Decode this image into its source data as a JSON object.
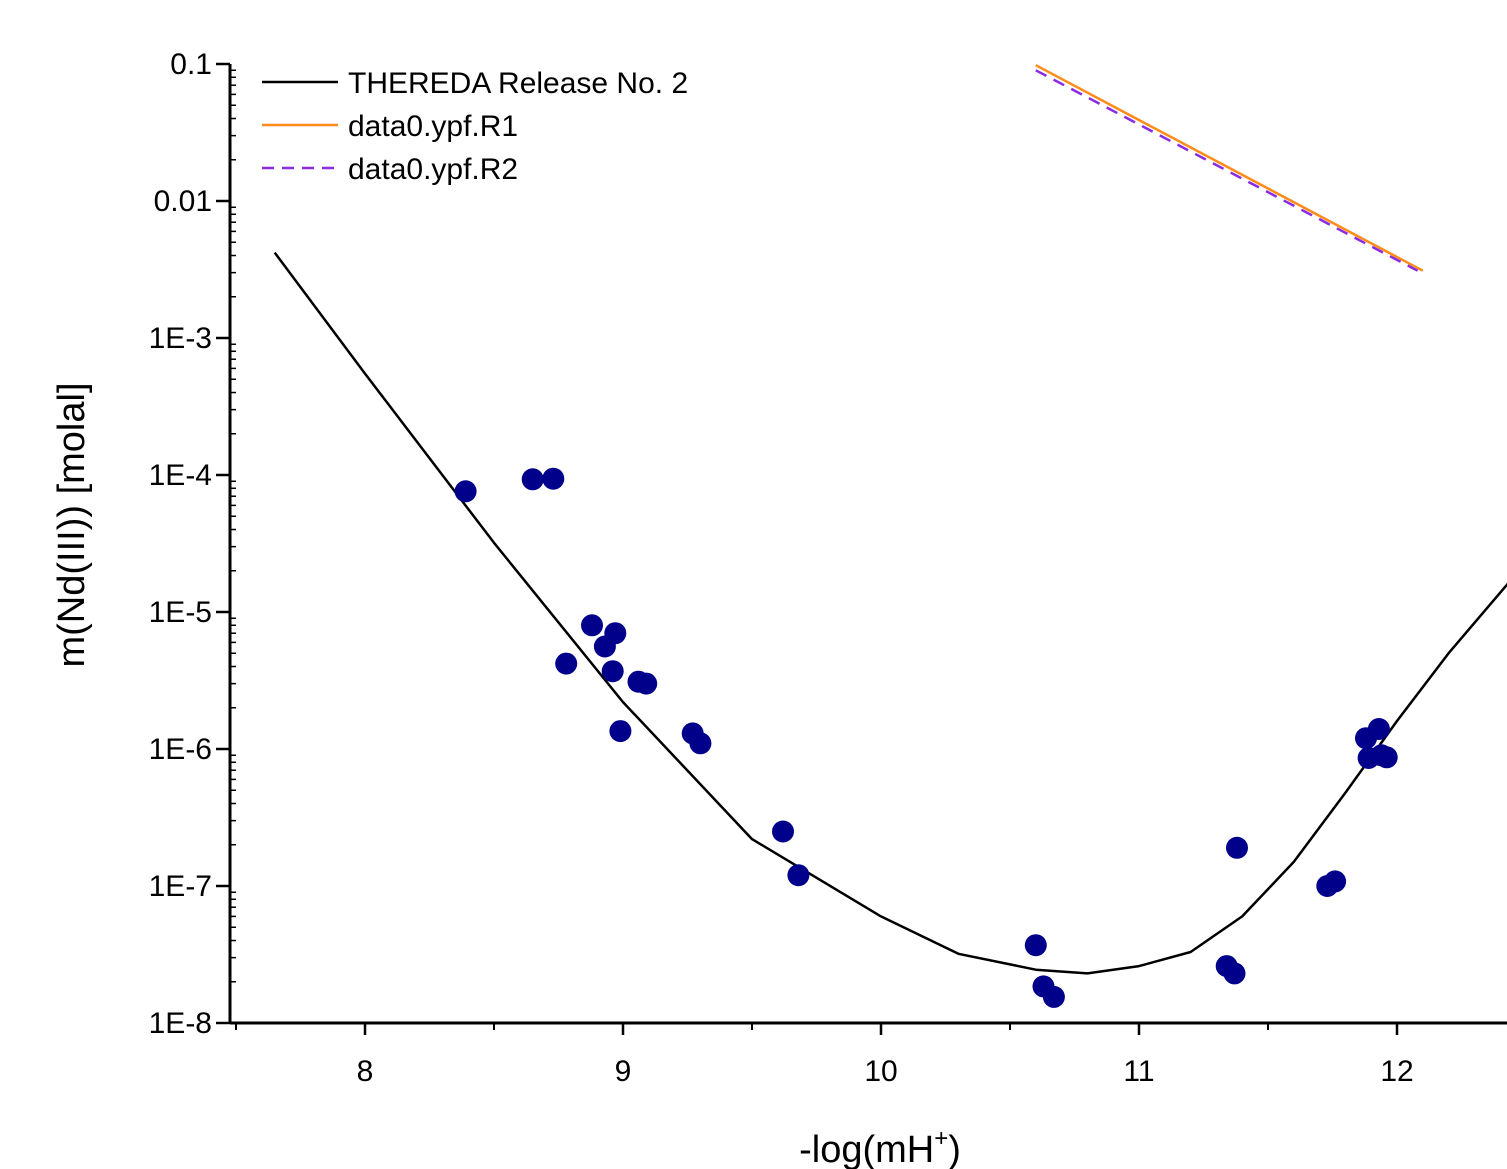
{
  "chart_data": {
    "type": "scatter",
    "xlabel": "-log(mH",
    "xlabel_sup": "+",
    "xlabel_close": ")",
    "ylabel": "m(Nd(III)) [molal]",
    "xlim": [
      7.5,
      12.5
    ],
    "ylim": [
      1e-08,
      0.1
    ],
    "y_scale": "log",
    "x_ticks": [
      8,
      9,
      10,
      11,
      12
    ],
    "x_tick_labels": [
      "8",
      "9",
      "10",
      "11",
      "12"
    ],
    "y_ticks": [
      1e-08,
      1e-07,
      1e-06,
      1e-05,
      0.0001,
      0.001,
      0.01,
      0.1
    ],
    "y_tick_labels": [
      "1E-8",
      "1E-7",
      "1E-6",
      "1E-5",
      "1E-4",
      "1E-3",
      "0.01",
      "0.1"
    ],
    "grid": false,
    "legend_position": "top-left",
    "series": [
      {
        "name": "THEREDA Release No. 2",
        "kind": "line",
        "color": "#000000",
        "dash": "solid",
        "x": [
          7.65,
          8.0,
          8.5,
          9.0,
          9.5,
          10.0,
          10.3,
          10.6,
          10.8,
          11.0,
          11.2,
          11.4,
          11.6,
          11.8,
          12.0,
          12.2,
          12.5
        ],
        "y": [
          0.0042,
          0.00055,
          3.2e-05,
          2.2e-06,
          2.2e-07,
          6e-08,
          3.2e-08,
          2.45e-08,
          2.3e-08,
          2.6e-08,
          3.3e-08,
          6e-08,
          1.5e-07,
          4.8e-07,
          1.6e-06,
          5e-06,
          2.3e-05
        ]
      },
      {
        "name": "data0.ypf.R1",
        "kind": "line",
        "color": "#ff8c1a",
        "dash": "solid",
        "x": [
          10.6,
          12.1
        ],
        "y": [
          0.098,
          0.0031
        ]
      },
      {
        "name": "data0.ypf.R2",
        "kind": "line",
        "color": "#8a2be2",
        "dash": "dashed",
        "x": [
          10.6,
          12.08
        ],
        "y": [
          0.09,
          0.0031
        ]
      },
      {
        "name": "",
        "kind": "points",
        "color": "#00008b",
        "points": [
          [
            8.39,
            7.6e-05
          ],
          [
            8.65,
            9.3e-05
          ],
          [
            8.73,
            9.4e-05
          ],
          [
            8.78,
            4.2e-06
          ],
          [
            8.88,
            8e-06
          ],
          [
            8.93,
            5.6e-06
          ],
          [
            8.96,
            3.7e-06
          ],
          [
            8.97,
            7e-06
          ],
          [
            8.99,
            1.35e-06
          ],
          [
            9.06,
            3.1e-06
          ],
          [
            9.09,
            3e-06
          ],
          [
            9.27,
            1.3e-06
          ],
          [
            9.3,
            1.1e-06
          ],
          [
            9.62,
            2.5e-07
          ],
          [
            9.68,
            1.2e-07
          ],
          [
            10.6,
            3.7e-08
          ],
          [
            10.63,
            1.85e-08
          ],
          [
            10.67,
            1.55e-08
          ],
          [
            11.34,
            2.6e-08
          ],
          [
            11.37,
            2.3e-08
          ],
          [
            11.38,
            1.9e-07
          ],
          [
            11.73,
            1e-07
          ],
          [
            11.76,
            1.08e-07
          ],
          [
            11.88,
            1.2e-06
          ],
          [
            11.89,
            8.6e-07
          ],
          [
            11.93,
            1.4e-06
          ],
          [
            11.94,
            9e-07
          ],
          [
            11.96,
            8.7e-07
          ]
        ]
      }
    ]
  }
}
